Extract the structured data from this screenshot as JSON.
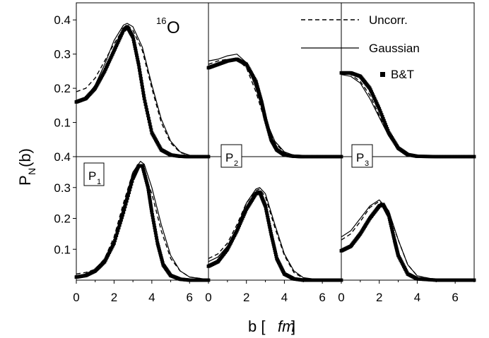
{
  "figure": {
    "nucleus_label": {
      "mass": "16",
      "symbol": "O"
    },
    "ylabel_main": "P",
    "ylabel_sub": "N",
    "ylabel_tail": "(b)",
    "xlabel_main": "b [",
    "xlabel_unit": "fm",
    "xlabel_tail": "]",
    "panel_labels": [
      {
        "main": "P",
        "sub": "1"
      },
      {
        "main": "P",
        "sub": "2"
      },
      {
        "main": "P",
        "sub": "3"
      }
    ],
    "legend": {
      "dashed": "Uncorr.",
      "solid": "Gaussian",
      "square": "B&T"
    },
    "colors": {
      "lines": "#000000",
      "background": "#ffffff"
    }
  },
  "chart_data": {
    "type": "line",
    "layout": "3 columns x 2 rows of panels",
    "columns": [
      "P1",
      "P2",
      "P3"
    ],
    "x_axis": {
      "label": "b [fm]",
      "ranges": [
        [
          0,
          7
        ],
        [
          0,
          7
        ],
        [
          0,
          7
        ]
      ],
      "ticks": [
        [
          0,
          2,
          4,
          6
        ],
        [
          0,
          2,
          4,
          6
        ],
        [
          0,
          2,
          4,
          6
        ]
      ]
    },
    "y_axis": {
      "label": "P_N(b)",
      "top_range": [
        0,
        0.45
      ],
      "bottom_range": [
        0,
        0.4
      ],
      "top_ticks": [
        0.1,
        0.2,
        0.3,
        0.4
      ],
      "bottom_ticks": [
        0.1,
        0.2,
        0.3,
        0.4
      ]
    },
    "series_styles": {
      "Uncorr.": "dashed line",
      "Gaussian": "solid line",
      "B&T": "filled square markers"
    },
    "panels": [
      {
        "row": "top",
        "column": "P1",
        "xlim": [
          0,
          7
        ],
        "ylim": [
          0,
          0.45
        ],
        "series": [
          {
            "name": "Uncorr.",
            "x": [
              0,
              0.5,
              1,
              1.5,
              2,
              2.5,
              2.8,
              3,
              3.5,
              4,
              4.5,
              5,
              5.5,
              6,
              7
            ],
            "y": [
              0.19,
              0.2,
              0.23,
              0.28,
              0.33,
              0.375,
              0.38,
              0.37,
              0.31,
              0.2,
              0.1,
              0.04,
              0.012,
              0.004,
              0.001
            ]
          },
          {
            "name": "Gaussian",
            "x": [
              0,
              0.5,
              1,
              1.5,
              2,
              2.5,
              2.7,
              3,
              3.5,
              4,
              4.5,
              5,
              5.5,
              6,
              7
            ],
            "y": [
              0.16,
              0.17,
              0.21,
              0.27,
              0.34,
              0.385,
              0.39,
              0.38,
              0.32,
              0.21,
              0.11,
              0.045,
              0.014,
              0.004,
              0.001
            ]
          },
          {
            "name": "B&T",
            "x": [
              0,
              0.5,
              1,
              1.5,
              2,
              2.5,
              2.7,
              3,
              3.3,
              3.6,
              4,
              4.5,
              5,
              5.5,
              6,
              7
            ],
            "y": [
              0.16,
              0.17,
              0.2,
              0.25,
              0.31,
              0.37,
              0.38,
              0.35,
              0.27,
              0.17,
              0.07,
              0.02,
              0.005,
              0.001,
              0.0,
              0.0
            ]
          }
        ]
      },
      {
        "row": "top",
        "column": "P2",
        "xlim": [
          0,
          7
        ],
        "ylim": [
          0,
          0.45
        ],
        "series": [
          {
            "name": "Uncorr.",
            "x": [
              0,
              0.5,
              1,
              1.5,
              2,
              2.5,
              3,
              3.5,
              4,
              4.5,
              5,
              6,
              7
            ],
            "y": [
              0.27,
              0.28,
              0.285,
              0.285,
              0.26,
              0.19,
              0.1,
              0.04,
              0.012,
              0.003,
              0.001,
              0.0,
              0.0
            ]
          },
          {
            "name": "Gaussian",
            "x": [
              0,
              0.5,
              1,
              1.5,
              2,
              2.5,
              3,
              3.5,
              4,
              4.5,
              5,
              6,
              7
            ],
            "y": [
              0.28,
              0.285,
              0.295,
              0.3,
              0.275,
              0.2,
              0.11,
              0.045,
              0.014,
              0.004,
              0.001,
              0.0,
              0.0
            ]
          },
          {
            "name": "B&T",
            "x": [
              0,
              0.5,
              1,
              1.5,
              2,
              2.5,
              2.8,
              3,
              3.3,
              3.6,
              4,
              4.5,
              5,
              6,
              7
            ],
            "y": [
              0.26,
              0.27,
              0.28,
              0.285,
              0.27,
              0.22,
              0.16,
              0.11,
              0.05,
              0.02,
              0.005,
              0.001,
              0.0,
              0.0,
              0.0
            ]
          }
        ]
      },
      {
        "row": "top",
        "column": "P3",
        "xlim": [
          0,
          7
        ],
        "ylim": [
          0,
          0.45
        ],
        "series": [
          {
            "name": "Uncorr.",
            "x": [
              0,
              0.5,
              1,
              1.5,
              2,
              2.5,
              3,
              3.5,
              4,
              5,
              6,
              7
            ],
            "y": [
              0.245,
              0.24,
              0.22,
              0.18,
              0.12,
              0.06,
              0.022,
              0.006,
              0.001,
              0.0,
              0.0,
              0.0
            ]
          },
          {
            "name": "Gaussian",
            "x": [
              0,
              0.5,
              1,
              1.5,
              2,
              2.5,
              3,
              3.5,
              4,
              5,
              6,
              7
            ],
            "y": [
              0.24,
              0.235,
              0.215,
              0.17,
              0.115,
              0.06,
              0.024,
              0.008,
              0.002,
              0.0,
              0.0,
              0.0
            ]
          },
          {
            "name": "B&T",
            "x": [
              0,
              0.5,
              1,
              1.5,
              2,
              2.5,
              3,
              3.5,
              4,
              5,
              6,
              7
            ],
            "y": [
              0.245,
              0.245,
              0.235,
              0.2,
              0.14,
              0.07,
              0.025,
              0.006,
              0.001,
              0.0,
              0.0,
              0.0
            ]
          }
        ]
      },
      {
        "row": "bottom",
        "column": "P1",
        "xlim": [
          0,
          7
        ],
        "ylim": [
          0,
          0.4
        ],
        "series": [
          {
            "name": "Uncorr.",
            "x": [
              0,
              0.5,
              1,
              1.5,
              2,
              2.5,
              3,
              3.3,
              3.5,
              4,
              4.5,
              5,
              5.5,
              6,
              7
            ],
            "y": [
              0.02,
              0.025,
              0.035,
              0.07,
              0.14,
              0.25,
              0.35,
              0.375,
              0.36,
              0.28,
              0.16,
              0.07,
              0.03,
              0.01,
              0.002
            ]
          },
          {
            "name": "Gaussian",
            "x": [
              0,
              0.5,
              1,
              1.5,
              2,
              2.5,
              3,
              3.4,
              3.6,
              4,
              4.5,
              5,
              5.5,
              6,
              7
            ],
            "y": [
              0.01,
              0.015,
              0.03,
              0.06,
              0.13,
              0.24,
              0.35,
              0.385,
              0.375,
              0.3,
              0.18,
              0.08,
              0.03,
              0.01,
              0.002
            ]
          },
          {
            "name": "B&T",
            "x": [
              0,
              0.5,
              1,
              1.5,
              2,
              2.5,
              3,
              3.3,
              3.5,
              3.8,
              4,
              4.3,
              4.6,
              5,
              5.5,
              6,
              7
            ],
            "y": [
              0.01,
              0.015,
              0.03,
              0.06,
              0.12,
              0.22,
              0.33,
              0.37,
              0.37,
              0.3,
              0.22,
              0.12,
              0.05,
              0.015,
              0.003,
              0.0,
              0.0
            ]
          }
        ]
      },
      {
        "row": "bottom",
        "column": "P2",
        "xlim": [
          0,
          7
        ],
        "ylim": [
          0,
          0.4
        ],
        "series": [
          {
            "name": "Uncorr.",
            "x": [
              0,
              0.5,
              1,
              1.5,
              2,
              2.5,
              2.7,
              3,
              3.5,
              4,
              4.5,
              5,
              6,
              7
            ],
            "y": [
              0.07,
              0.085,
              0.12,
              0.18,
              0.25,
              0.29,
              0.295,
              0.27,
              0.17,
              0.08,
              0.025,
              0.006,
              0.0,
              0.0
            ]
          },
          {
            "name": "Gaussian",
            "x": [
              0,
              0.5,
              1,
              1.5,
              2,
              2.5,
              2.7,
              3,
              3.5,
              4,
              4.5,
              5,
              6,
              7
            ],
            "y": [
              0.06,
              0.075,
              0.11,
              0.17,
              0.25,
              0.295,
              0.3,
              0.28,
              0.18,
              0.085,
              0.03,
              0.008,
              0.0,
              0.0
            ]
          },
          {
            "name": "B&T",
            "x": [
              0,
              0.5,
              1,
              1.5,
              2,
              2.5,
              2.7,
              3,
              3.3,
              3.6,
              4,
              4.5,
              5,
              6,
              7
            ],
            "y": [
              0.045,
              0.06,
              0.1,
              0.16,
              0.23,
              0.28,
              0.285,
              0.24,
              0.15,
              0.07,
              0.02,
              0.004,
              0.0,
              0.0,
              0.0
            ]
          }
        ]
      },
      {
        "row": "bottom",
        "column": "P3",
        "xlim": [
          0,
          7
        ],
        "ylim": [
          0,
          0.4
        ],
        "series": [
          {
            "name": "Uncorr.",
            "x": [
              0,
              0.5,
              1,
              1.5,
              2,
              2.5,
              3,
              3.5,
              4,
              5,
              6,
              7
            ],
            "y": [
              0.13,
              0.15,
              0.19,
              0.235,
              0.255,
              0.22,
              0.13,
              0.05,
              0.014,
              0.001,
              0.0,
              0.0
            ]
          },
          {
            "name": "Gaussian",
            "x": [
              0,
              0.5,
              1,
              1.5,
              2,
              2.5,
              3,
              3.5,
              4,
              5,
              6,
              7
            ],
            "y": [
              0.14,
              0.16,
              0.2,
              0.24,
              0.26,
              0.225,
              0.13,
              0.05,
              0.014,
              0.001,
              0.0,
              0.0
            ]
          },
          {
            "name": "B&T",
            "x": [
              0,
              0.5,
              1,
              1.5,
              2,
              2.2,
              2.5,
              2.8,
              3,
              3.5,
              4,
              5,
              6,
              7
            ],
            "y": [
              0.095,
              0.11,
              0.15,
              0.2,
              0.24,
              0.245,
              0.21,
              0.13,
              0.08,
              0.02,
              0.004,
              0.0,
              0.0,
              0.0
            ]
          }
        ]
      }
    ]
  }
}
